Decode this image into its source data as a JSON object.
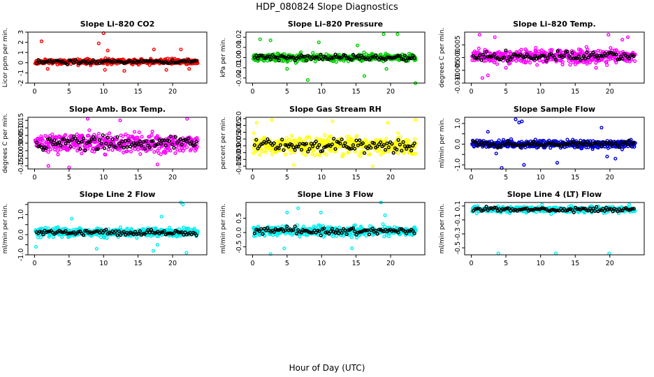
{
  "title": "HDP_080824  Slope Diagnostics",
  "xlabel": "Hour of Day (UTC)",
  "chart_data": [
    {
      "type": "scatter",
      "title": "Slope Li–820 CO2",
      "ylabel": "Licor ppm per min.",
      "color": "#ff0000",
      "xlim": [
        0,
        24
      ],
      "ylim": [
        -2,
        3
      ],
      "xticks": [
        0,
        5,
        10,
        15,
        20
      ],
      "yticks": [
        -2,
        -1,
        0,
        1,
        2,
        3
      ],
      "ytick_labels": [
        "-2",
        "-1",
        "0",
        "1",
        "2",
        "3"
      ],
      "center": 0.1,
      "spread": 0.25,
      "outliers": [
        [
          1.0,
          2.1
        ],
        [
          1.9,
          -0.6
        ],
        [
          9.3,
          1.9
        ],
        [
          10.0,
          2.9
        ],
        [
          10.2,
          -0.7
        ],
        [
          10.6,
          1.2
        ],
        [
          13.0,
          -0.8
        ],
        [
          17.3,
          1.3
        ],
        [
          19.1,
          -0.7
        ],
        [
          21.2,
          1.3
        ],
        [
          22.4,
          -0.6
        ]
      ],
      "series_desc": "red open circles (all scans), black open circles (valid scans)"
    },
    {
      "type": "scatter",
      "title": "Slope Li–820 Pressure",
      "ylabel": "kPa per min.",
      "color": "#00cc00",
      "xlim": [
        0,
        24
      ],
      "ylim": [
        -0.025,
        0.025
      ],
      "xticks": [
        0,
        5,
        10,
        15,
        20
      ],
      "yticks": [
        -0.02,
        -0.01,
        0.0,
        0.01,
        0.02
      ],
      "ytick_labels": [
        "-0.02",
        "-0.01",
        "0.00",
        "0.01",
        "0.02"
      ],
      "center": 0.0,
      "spread": 0.0035,
      "outliers": [
        [
          1.1,
          0.018
        ],
        [
          2.6,
          0.017
        ],
        [
          5.0,
          -0.011
        ],
        [
          8.0,
          -0.022
        ],
        [
          9.6,
          0.015
        ],
        [
          15.2,
          0.012
        ],
        [
          16.2,
          -0.018
        ],
        [
          19.0,
          0.023
        ],
        [
          19.4,
          -0.011
        ],
        [
          21.0,
          0.023
        ],
        [
          23.6,
          -0.025
        ]
      ],
      "series_desc": "green open circles (all scans), black open circles (valid scans)"
    },
    {
      "type": "scatter",
      "title": "Slope Li–820 Temp.",
      "ylabel": "degrees C per min.",
      "color": "#ff00ff",
      "xlim": [
        0,
        24
      ],
      "ylim": [
        -0.01,
        0.01
      ],
      "xticks": [
        0,
        5,
        10,
        15,
        20
      ],
      "yticks": [
        -0.01,
        -0.005,
        0.0,
        0.005
      ],
      "ytick_labels": [
        "-0.010",
        "-0.005",
        "0.000",
        "0.005"
      ],
      "center": 0.0005,
      "spread": 0.0025,
      "outliers": [
        [
          1.2,
          0.009
        ],
        [
          1.6,
          -0.008
        ],
        [
          2.4,
          -0.007
        ],
        [
          3.4,
          0.008
        ],
        [
          5.0,
          -0.004
        ],
        [
          18.0,
          -0.004
        ],
        [
          19.8,
          0.009
        ],
        [
          21.8,
          0.007
        ],
        [
          22.6,
          0.008
        ]
      ],
      "series_desc": "magenta open circles (all scans), black open circles (valid scans)"
    },
    {
      "type": "scatter",
      "title": "Slope Amb. Box Temp.",
      "ylabel": "degrees C per min.",
      "color": "#ff00ff",
      "xlim": [
        0,
        24
      ],
      "ylim": [
        -0.17,
        0.17
      ],
      "xticks": [
        0,
        5,
        10,
        15,
        20
      ],
      "yticks": [
        -0.15,
        -0.1,
        -0.05,
        0.0,
        0.05,
        0.1,
        0.15
      ],
      "ytick_labels": [
        "-0.15",
        "-0.10",
        "-0.05",
        "0.00",
        "0.05",
        "0.10",
        "0.15"
      ],
      "center": 0.0,
      "spread": 0.06,
      "outliers": [
        [
          2.0,
          -0.15
        ],
        [
          5.0,
          -0.16
        ],
        [
          7.7,
          0.16
        ],
        [
          12.4,
          0.15
        ],
        [
          17.8,
          -0.14
        ],
        [
          22.1,
          0.16
        ]
      ],
      "series_desc": "magenta open circles (all scans), black open circles (valid scans)"
    },
    {
      "type": "scatter",
      "title": "Slope Gas Stream RH",
      "ylabel": "percent per min.",
      "color": "#ffff00",
      "xlim": [
        0,
        24
      ],
      "ylim": [
        -0.17,
        0.21
      ],
      "xticks": [
        0,
        5,
        10,
        15,
        20
      ],
      "yticks": [
        -0.15,
        -0.1,
        -0.05,
        0.0,
        0.05,
        0.1,
        0.15,
        0.2
      ],
      "ytick_labels": [
        "-0.15",
        "-0.10",
        "-0.05",
        "0.00",
        "0.05",
        "0.10",
        "0.15",
        "0.20"
      ],
      "center": 0.0,
      "spread": 0.06,
      "outliers": [
        [
          0.6,
          0.17
        ],
        [
          2.8,
          0.19
        ],
        [
          6.0,
          -0.14
        ],
        [
          11.6,
          0.18
        ],
        [
          17.4,
          -0.15
        ],
        [
          19.6,
          0.17
        ],
        [
          23.6,
          0.19
        ]
      ],
      "series_desc": "yellow open circles (all scans), black open circles (valid scans)"
    },
    {
      "type": "scatter",
      "title": "Slope Sample Flow",
      "ylabel": "ml/min per min.",
      "color": "#0000dd",
      "xlim": [
        0,
        24
      ],
      "ylim": [
        -1.2,
        1.3
      ],
      "xticks": [
        0,
        5,
        10,
        15,
        20
      ],
      "yticks": [
        -1.0,
        -0.5,
        0.0,
        0.5,
        1.0
      ],
      "ytick_labels": [
        "-1.0",
        "",
        "0.0",
        "",
        "1.0"
      ],
      "center": 0.0,
      "spread": 0.18,
      "outliers": [
        [
          2.4,
          0.6
        ],
        [
          3.6,
          -0.45
        ],
        [
          4.4,
          -1.15
        ],
        [
          6.4,
          1.2
        ],
        [
          6.9,
          1.05
        ],
        [
          7.3,
          1.1
        ],
        [
          7.6,
          -1.0
        ],
        [
          12.4,
          -0.9
        ],
        [
          18.8,
          0.8
        ],
        [
          19.6,
          -0.6
        ],
        [
          20.8,
          -0.7
        ]
      ],
      "series_desc": "blue open circles (all scans), black open circles (valid scans)"
    },
    {
      "type": "scatter",
      "title": "Slope Line 2 Flow",
      "ylabel": "ml/min per min.",
      "color": "#00eeee",
      "xlim": [
        0,
        24
      ],
      "ylim": [
        -1.0,
        1.6
      ],
      "xticks": [
        0,
        5,
        10,
        15,
        20
      ],
      "yticks": [
        -1.0,
        -0.5,
        0.0,
        0.5,
        1.0,
        1.5
      ],
      "ytick_labels": [
        "-1.0",
        "",
        "0.0",
        "",
        "1.0",
        ""
      ],
      "center": 0.1,
      "spread": 0.2,
      "outliers": [
        [
          0.2,
          -0.6
        ],
        [
          5.4,
          0.8
        ],
        [
          9.0,
          -0.7
        ],
        [
          17.2,
          -0.8
        ],
        [
          17.8,
          -0.5
        ],
        [
          18.4,
          0.9
        ],
        [
          21.2,
          1.6
        ],
        [
          21.5,
          1.5
        ],
        [
          22.0,
          -0.9
        ]
      ],
      "series_desc": "cyan open circles (all scans), black open circles (valid scans)"
    },
    {
      "type": "scatter",
      "title": "Slope Line 3 Flow",
      "ylabel": "ml/min per min.",
      "color": "#00eeee",
      "xlim": [
        0,
        24
      ],
      "ylim": [
        -0.78,
        1.05
      ],
      "xticks": [
        0,
        5,
        10,
        15,
        20
      ],
      "yticks": [
        -0.5,
        0.0,
        0.5
      ],
      "ytick_labels": [
        "-0.5",
        "0.0",
        "0.5"
      ],
      "center": 0.05,
      "spread": 0.16,
      "outliers": [
        [
          2.6,
          -0.75
        ],
        [
          4.6,
          -0.55
        ],
        [
          5.0,
          0.7
        ],
        [
          6.6,
          0.85
        ],
        [
          9.9,
          0.7
        ],
        [
          14.4,
          -0.55
        ],
        [
          18.6,
          1.05
        ],
        [
          19.2,
          0.6
        ]
      ],
      "series_desc": "cyan open circles (all scans), black open circles (valid scans)"
    },
    {
      "type": "scatter",
      "title": "Slope Line 4 (LT) Flow",
      "ylabel": "ml/min per min.",
      "color": "#00eeee",
      "xlim": [
        0,
        24
      ],
      "ylim": [
        -0.6,
        0.15
      ],
      "xticks": [
        0,
        5,
        10,
        15,
        20
      ],
      "yticks": [
        -0.5,
        -0.3,
        -0.1,
        0.1
      ],
      "ytick_labels": [
        "-0.5",
        "-0.3",
        "-0.1",
        "0.1"
      ],
      "center": 0.05,
      "spread": 0.04,
      "outliers": [
        [
          3.9,
          -0.58
        ],
        [
          10.2,
          0.12
        ],
        [
          12.2,
          -0.58
        ],
        [
          19.9,
          -0.58
        ],
        [
          22.8,
          0.12
        ]
      ],
      "series_desc": "cyan open circles (all scans), black open circles (valid scans)"
    }
  ]
}
